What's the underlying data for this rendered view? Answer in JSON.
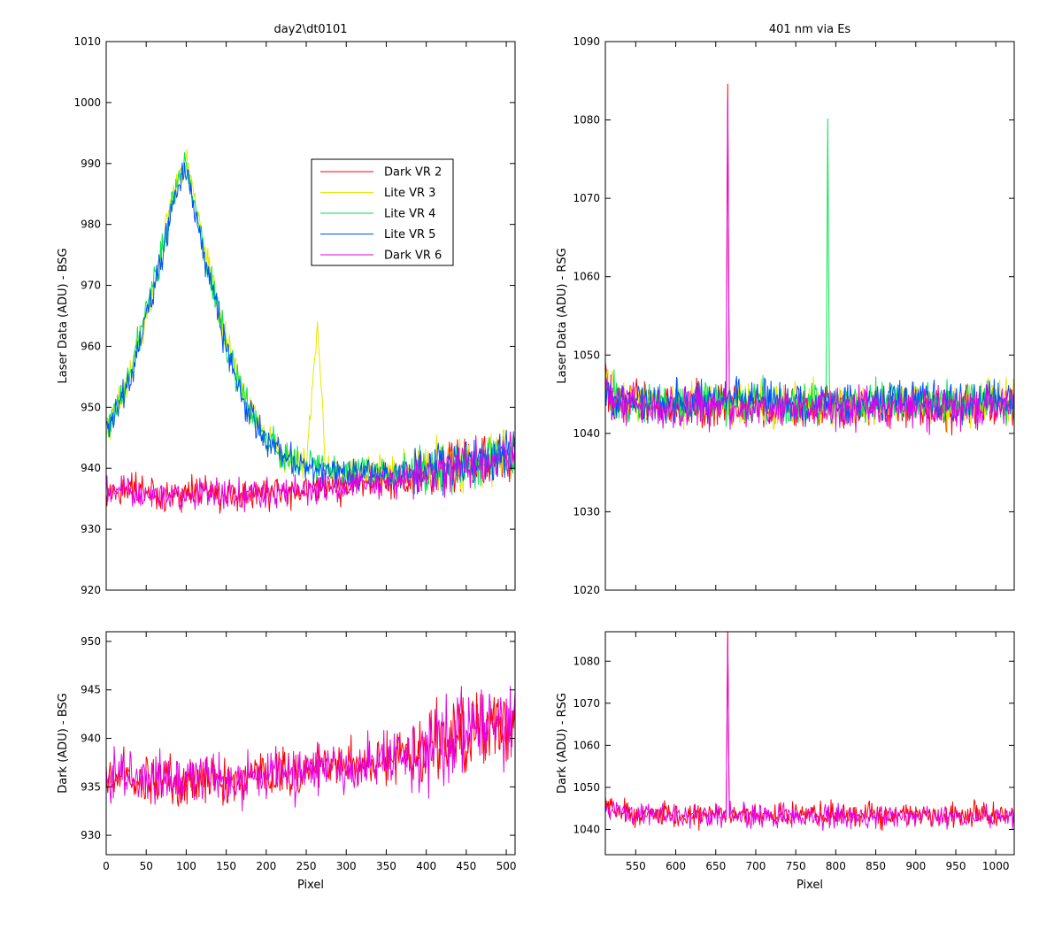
{
  "figure": {
    "colors": {
      "Dark VR 2": "#ff0000",
      "Lite VR 3": "#e6e600",
      "Lite VR 4": "#00e64d",
      "Lite VR 5": "#0050ff",
      "Dark VR 6": "#e600e6"
    }
  },
  "chart_data": [
    {
      "id": "top-left",
      "type": "line",
      "title": "day2\\dt0101",
      "xlabel": "",
      "ylabel": "Laser Data (ADU) - BSG",
      "xlim": [
        0,
        511
      ],
      "ylim": [
        920,
        1010
      ],
      "xticks": [],
      "yticks": [
        920,
        930,
        940,
        950,
        960,
        970,
        980,
        990,
        1000,
        1010
      ],
      "xminor": [
        0,
        50,
        100,
        150,
        200,
        250,
        300,
        350,
        400,
        450,
        500
      ],
      "legend": {
        "position": "upper-right-inside",
        "entries": [
          "Dark VR 2",
          "Lite VR 3",
          "Lite VR 4",
          "Lite VR 5",
          "Dark VR 6"
        ]
      },
      "series": [
        {
          "name": "Dark VR 2",
          "x": [
            0,
            25,
            50,
            75,
            100,
            125,
            150,
            175,
            200,
            225,
            250,
            275,
            300,
            325,
            350,
            375,
            400,
            425,
            450,
            475,
            500,
            511
          ],
          "values": [
            936,
            936.5,
            935.8,
            935.6,
            935.8,
            935.9,
            935.7,
            935.8,
            936,
            936.3,
            936.5,
            937,
            937.2,
            937.5,
            937.8,
            938.3,
            939,
            940,
            941,
            941.5,
            942,
            942
          ]
        },
        {
          "name": "Lite VR 3",
          "x": [
            0,
            10,
            20,
            30,
            40,
            50,
            60,
            70,
            80,
            90,
            100,
            110,
            120,
            130,
            140,
            150,
            160,
            170,
            180,
            190,
            200,
            225,
            250,
            264,
            275,
            300,
            325,
            350,
            375,
            400,
            425,
            450,
            475,
            500,
            511
          ],
          "values": [
            947,
            949,
            952,
            956,
            961,
            965,
            971,
            976,
            983,
            988,
            991,
            984,
            978,
            972,
            966,
            961,
            957,
            953,
            950,
            947,
            945,
            942,
            940.5,
            963,
            940,
            939.5,
            939.5,
            939.5,
            939.8,
            940,
            940.5,
            941,
            941.5,
            942,
            942
          ]
        },
        {
          "name": "Lite VR 4",
          "x": [
            0,
            10,
            20,
            30,
            40,
            50,
            60,
            70,
            80,
            90,
            100,
            110,
            120,
            130,
            140,
            150,
            160,
            170,
            180,
            190,
            200,
            225,
            250,
            275,
            300,
            325,
            350,
            375,
            400,
            425,
            450,
            475,
            500,
            511
          ],
          "values": [
            947,
            949,
            951.5,
            955.5,
            960.5,
            965,
            970.5,
            975.5,
            982,
            987,
            990,
            983,
            977,
            971.5,
            966,
            960.5,
            956.5,
            952.5,
            949.5,
            947,
            945,
            942,
            940.5,
            940,
            939.5,
            939.5,
            939.5,
            939.8,
            940,
            940.5,
            941,
            941.5,
            942,
            942
          ]
        },
        {
          "name": "Lite VR 5",
          "x": [
            0,
            10,
            20,
            30,
            40,
            50,
            60,
            70,
            80,
            90,
            100,
            110,
            120,
            130,
            140,
            150,
            160,
            170,
            180,
            190,
            200,
            225,
            250,
            275,
            300,
            325,
            350,
            375,
            400,
            425,
            450,
            475,
            500,
            511
          ],
          "values": [
            946.5,
            948.5,
            951,
            955,
            960,
            964.5,
            970,
            975,
            981.5,
            986.5,
            989.5,
            982.5,
            976.5,
            971,
            965.5,
            960,
            956,
            952,
            949,
            946.5,
            944.5,
            941.5,
            940,
            939.5,
            939.2,
            939.2,
            939.3,
            939.5,
            940,
            940.5,
            941,
            941.5,
            942,
            942
          ]
        },
        {
          "name": "Dark VR 6",
          "x": [
            0,
            25,
            50,
            75,
            100,
            125,
            150,
            175,
            200,
            225,
            250,
            275,
            300,
            325,
            350,
            375,
            400,
            425,
            450,
            475,
            500,
            511
          ],
          "values": [
            936,
            936.3,
            935.7,
            935.5,
            935.7,
            935.8,
            935.6,
            935.8,
            936,
            936.2,
            936.4,
            936.8,
            937.1,
            937.4,
            937.7,
            938.2,
            939,
            940,
            940.8,
            941.2,
            941.8,
            942
          ]
        }
      ]
    },
    {
      "id": "top-right",
      "type": "line",
      "title": "401 nm via Es",
      "xlabel": "",
      "ylabel": "Laser Data (ADU) - RSG",
      "xlim": [
        512,
        1023
      ],
      "ylim": [
        1020,
        1090
      ],
      "xticks": [],
      "yticks": [
        1020,
        1030,
        1040,
        1050,
        1060,
        1070,
        1080,
        1090
      ],
      "xminor": [
        550,
        600,
        650,
        700,
        750,
        800,
        850,
        900,
        950,
        1000
      ],
      "series": [
        {
          "name": "Dark VR 2",
          "x": [
            512,
            520,
            540,
            600,
            650,
            663,
            665,
            667,
            700,
            750,
            800,
            850,
            900,
            950,
            1000,
            1023
          ],
          "values": [
            1046,
            1045,
            1043.8,
            1043.5,
            1043.5,
            1043.5,
            1085,
            1043.5,
            1043.5,
            1043.5,
            1043.5,
            1043.5,
            1043.5,
            1043.3,
            1043.5,
            1043.5
          ]
        },
        {
          "name": "Lite VR 3",
          "x": [
            512,
            520,
            540,
            600,
            700,
            800,
            900,
            1000,
            1023
          ],
          "values": [
            1046,
            1045,
            1044,
            1043.8,
            1043.8,
            1043.8,
            1043.6,
            1043.8,
            1044
          ]
        },
        {
          "name": "Lite VR 4",
          "x": [
            512,
            520,
            540,
            600,
            700,
            788,
            790,
            792,
            800,
            900,
            1000,
            1023
          ],
          "values": [
            1046,
            1045,
            1044,
            1044,
            1044,
            1044,
            1078,
            1044,
            1044,
            1044,
            1044,
            1044
          ]
        },
        {
          "name": "Lite VR 5",
          "x": [
            512,
            520,
            540,
            600,
            700,
            800,
            900,
            1000,
            1023
          ],
          "values": [
            1046,
            1045,
            1044,
            1044,
            1044,
            1044,
            1044,
            1044,
            1044
          ]
        },
        {
          "name": "Dark VR 6",
          "x": [
            512,
            520,
            540,
            600,
            650,
            663,
            665,
            667,
            700,
            750,
            800,
            850,
            900,
            950,
            1000,
            1023
          ],
          "values": [
            1046,
            1045,
            1043.5,
            1043.3,
            1043.3,
            1043.3,
            1085,
            1043.3,
            1043.3,
            1043.3,
            1043.3,
            1043.3,
            1043.2,
            1043,
            1043.3,
            1043.5
          ]
        }
      ]
    },
    {
      "id": "bottom-left",
      "type": "line",
      "title": "",
      "xlabel": "Pixel",
      "ylabel": "Dark (ADU) - BSG",
      "xlim": [
        0,
        511
      ],
      "ylim": [
        928,
        951
      ],
      "xticks": [
        0,
        50,
        100,
        150,
        200,
        250,
        300,
        350,
        400,
        450,
        500
      ],
      "yticks": [
        930,
        935,
        940,
        945,
        950
      ],
      "series": [
        {
          "name": "Dark VR 2",
          "x": [
            0,
            25,
            50,
            75,
            100,
            125,
            150,
            175,
            200,
            225,
            250,
            275,
            300,
            325,
            350,
            375,
            400,
            425,
            450,
            475,
            500,
            511
          ],
          "values": [
            936,
            936.5,
            935.8,
            935.6,
            935.8,
            935.9,
            935.7,
            935.8,
            936,
            936.3,
            936.5,
            937,
            937.2,
            937.5,
            937.8,
            938.3,
            939,
            940,
            941,
            941.5,
            942,
            942
          ]
        },
        {
          "name": "Dark VR 6",
          "x": [
            0,
            25,
            50,
            75,
            100,
            125,
            150,
            175,
            200,
            225,
            250,
            275,
            300,
            325,
            350,
            375,
            400,
            425,
            450,
            475,
            500,
            511
          ],
          "values": [
            936,
            936.3,
            935.7,
            935.5,
            935.7,
            935.8,
            935.6,
            935.8,
            936,
            936.2,
            936.4,
            936.8,
            937.1,
            937.4,
            937.7,
            938.2,
            939,
            940,
            940.8,
            941.2,
            941.8,
            942
          ]
        }
      ]
    },
    {
      "id": "bottom-right",
      "type": "line",
      "title": "",
      "xlabel": "Pixel",
      "ylabel": "Dark (ADU) - RSG",
      "xlim": [
        512,
        1023
      ],
      "ylim": [
        1034,
        1087
      ],
      "xticks": [
        550,
        600,
        650,
        700,
        750,
        800,
        850,
        900,
        950,
        1000
      ],
      "yticks": [
        1040,
        1050,
        1060,
        1070,
        1080
      ],
      "series": [
        {
          "name": "Dark VR 2",
          "x": [
            512,
            520,
            540,
            600,
            650,
            663,
            665,
            667,
            700,
            750,
            800,
            850,
            900,
            950,
            1000,
            1023
          ],
          "values": [
            1046,
            1045,
            1043.8,
            1043.5,
            1043.5,
            1043.5,
            1085,
            1043.5,
            1043.5,
            1043.5,
            1043.5,
            1043.5,
            1043.5,
            1043.3,
            1043.5,
            1043.5
          ]
        },
        {
          "name": "Dark VR 6",
          "x": [
            512,
            520,
            540,
            600,
            650,
            663,
            665,
            667,
            700,
            750,
            800,
            850,
            900,
            950,
            1000,
            1023
          ],
          "values": [
            1046,
            1045,
            1043.5,
            1043.3,
            1043.3,
            1043.3,
            1085,
            1043.3,
            1043.3,
            1043.3,
            1043.3,
            1043.3,
            1043.2,
            1043,
            1043.3,
            1043.5
          ]
        }
      ]
    }
  ]
}
